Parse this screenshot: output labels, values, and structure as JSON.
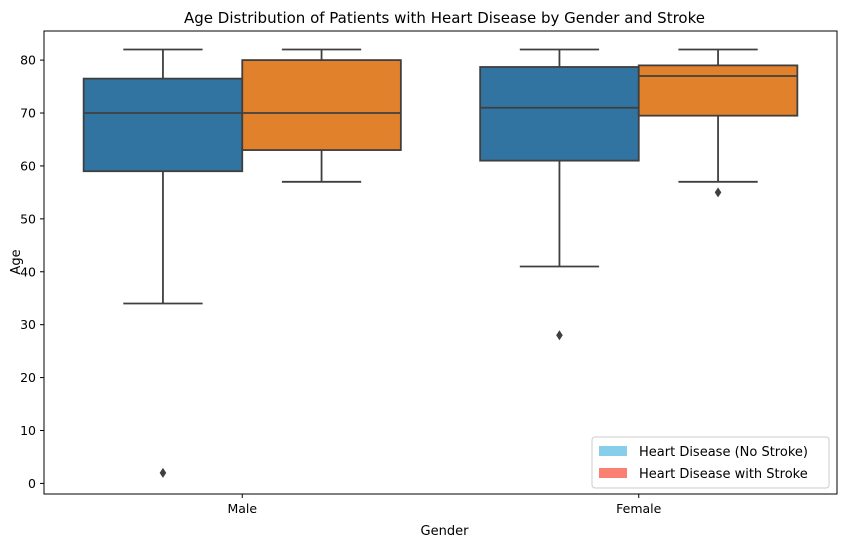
{
  "chart_data": {
    "type": "box",
    "title": "Age Distribution of Patients with Heart Disease by Gender and Stroke",
    "xlabel": "Gender",
    "ylabel": "Age",
    "categories": [
      "Male",
      "Female"
    ],
    "ylim": [
      -2,
      85.5
    ],
    "yticks": [
      0,
      10,
      20,
      30,
      40,
      50,
      60,
      70,
      80
    ],
    "grid": false,
    "legend_position": "bottom-right",
    "series": [
      {
        "legend_label": "Heart Disease (No Stroke)",
        "box_color": "#3274a1",
        "legend_color": "#87ceeb",
        "boxes": [
          {
            "category": "Male",
            "whisker_low": 34,
            "q1": 59,
            "median": 70,
            "q3": 76.5,
            "whisker_high": 82,
            "outliers": [
              2
            ]
          },
          {
            "category": "Female",
            "whisker_low": 41,
            "q1": 61,
            "median": 71,
            "q3": 78.7,
            "whisker_high": 82,
            "outliers": [
              28
            ]
          }
        ]
      },
      {
        "legend_label": "Heart Disease with Stroke",
        "box_color": "#e1812c",
        "legend_color": "#fa8072",
        "boxes": [
          {
            "category": "Male",
            "whisker_low": 57,
            "q1": 63,
            "median": 70,
            "q3": 80,
            "whisker_high": 82,
            "outliers": []
          },
          {
            "category": "Female",
            "whisker_low": 57,
            "q1": 69.5,
            "median": 77,
            "q3": 79,
            "whisker_high": 82,
            "outliers": [
              55
            ]
          }
        ]
      }
    ]
  }
}
